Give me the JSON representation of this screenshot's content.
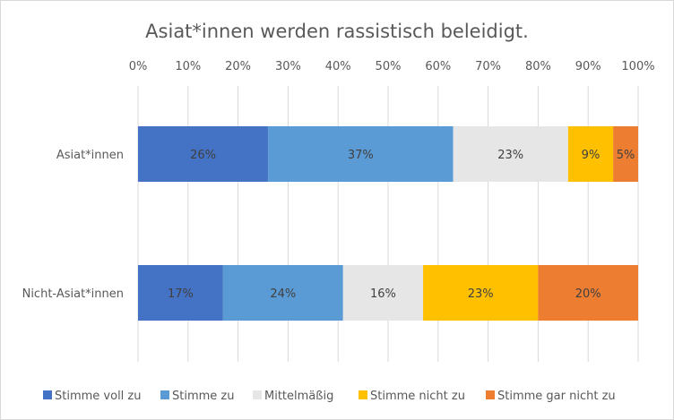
{
  "chart_data": {
    "type": "bar",
    "orientation": "horizontal",
    "stacked": "percent",
    "title": "Asiat*innen werden rassistisch beleidigt.",
    "categories": [
      "Asiat*innen",
      "Nicht-Asiat*innen"
    ],
    "xlim": [
      0,
      100
    ],
    "xticks": [
      "0%",
      "10%",
      "20%",
      "30%",
      "40%",
      "50%",
      "60%",
      "70%",
      "80%",
      "90%",
      "100%"
    ],
    "grid": "vertical",
    "legend_position": "bottom",
    "series": [
      {
        "name": "Stimme voll zu",
        "color": "#4472C4",
        "values": [
          26,
          17
        ],
        "labels": [
          "26%",
          "17%"
        ]
      },
      {
        "name": "Stimme zu",
        "color": "#5B9BD5",
        "values": [
          37,
          24
        ],
        "labels": [
          "37%",
          "24%"
        ]
      },
      {
        "name": "Mittelmäßig",
        "color": "#E7E6E6",
        "values": [
          23,
          16
        ],
        "labels": [
          "23%",
          "16%"
        ]
      },
      {
        "name": "Stimme nicht zu",
        "color": "#FFC000",
        "values": [
          9,
          23
        ],
        "labels": [
          "9%",
          "23%"
        ]
      },
      {
        "name": "Stimme gar nicht zu",
        "color": "#ED7D31",
        "values": [
          5,
          20
        ],
        "labels": [
          "5%",
          "20%"
        ]
      }
    ]
  }
}
